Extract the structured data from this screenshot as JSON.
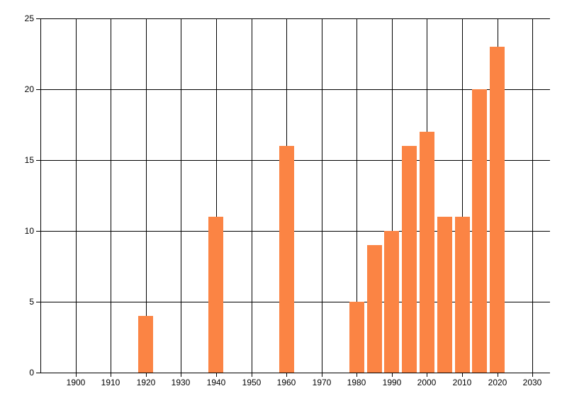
{
  "chart_data": {
    "type": "bar",
    "title": "",
    "xlabel": "",
    "ylabel": "",
    "x": [
      1920,
      1940,
      1960,
      1980,
      1985,
      1990,
      1995,
      2000,
      2005,
      2010,
      2015,
      2020
    ],
    "values": [
      4,
      11,
      16,
      5,
      9,
      10,
      16,
      17,
      11,
      11,
      20,
      23
    ],
    "x_ticks": [
      1900,
      1910,
      1920,
      1930,
      1940,
      1950,
      1960,
      1970,
      1980,
      1990,
      2000,
      2010,
      2020,
      2030
    ],
    "y_ticks": [
      0,
      5,
      10,
      15,
      20,
      25
    ],
    "xlim": [
      1890,
      2035
    ],
    "ylim": [
      0,
      25
    ],
    "grid": true,
    "legend_position": "none",
    "bar_width_years": 4.2,
    "bar_color": "#FB8444",
    "grid_color": "#000000",
    "text_color": "#000000",
    "background_color": "#FFFFFF"
  }
}
